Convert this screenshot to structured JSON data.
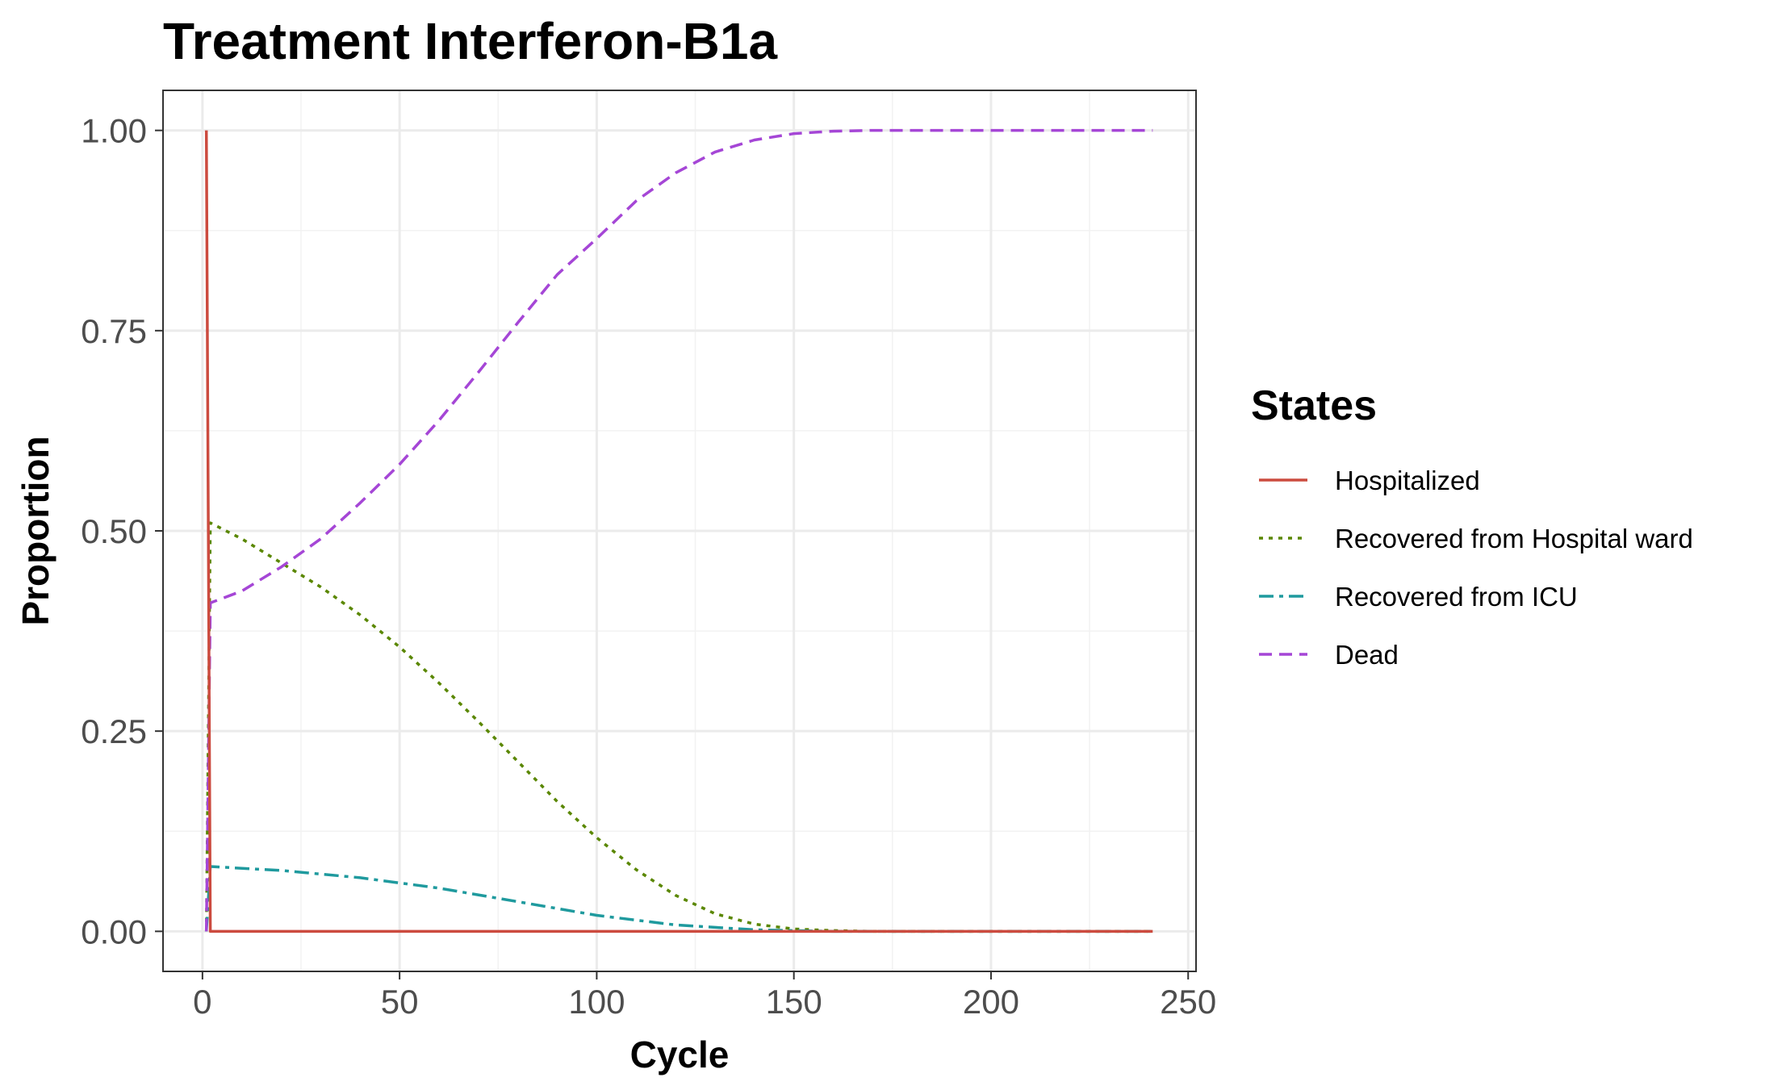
{
  "chart_data": {
    "type": "line",
    "title": "Treatment Interferon-B1a",
    "xlabel": "Cycle",
    "ylabel": "Proportion",
    "xlim": [
      -10,
      252
    ],
    "ylim": [
      -0.05,
      1.05
    ],
    "x_ticks": [
      0,
      50,
      100,
      150,
      200,
      250
    ],
    "x_tick_labels": [
      "0",
      "50",
      "100",
      "150",
      "200",
      "250"
    ],
    "y_ticks": [
      0,
      0.25,
      0.5,
      0.75,
      1.0
    ],
    "y_tick_labels": [
      "0.00",
      "0.25",
      "0.50",
      "0.75",
      "1.00"
    ],
    "grid": true,
    "legend": {
      "title": "States",
      "position": "right"
    },
    "series": [
      {
        "name": "Hospitalized",
        "color": "#cc4b3f",
        "dash": "solid",
        "x": [
          1,
          2,
          241
        ],
        "y": [
          1.0,
          0.0,
          0.0
        ]
      },
      {
        "name": "Recovered from Hospital ward",
        "color": "#5a8700",
        "dash": "dotted",
        "x": [
          1,
          2,
          10,
          20,
          30,
          40,
          50,
          60,
          70,
          80,
          90,
          100,
          110,
          120,
          130,
          140,
          150,
          160,
          170,
          180,
          200,
          220,
          241
        ],
        "y": [
          0.0,
          0.51,
          0.49,
          0.46,
          0.43,
          0.395,
          0.355,
          0.31,
          0.262,
          0.212,
          0.162,
          0.117,
          0.077,
          0.045,
          0.022,
          0.009,
          0.003,
          0.001,
          0.0,
          0.0,
          0.0,
          0.0,
          0.0
        ]
      },
      {
        "name": "Recovered from ICU",
        "color": "#1f9a9e",
        "dash": "dashdot",
        "x": [
          1,
          2,
          20,
          40,
          60,
          80,
          100,
          120,
          140,
          160,
          180,
          200,
          220,
          241
        ],
        "y": [
          0.0,
          0.081,
          0.076,
          0.067,
          0.054,
          0.037,
          0.02,
          0.008,
          0.002,
          0.0,
          0.0,
          0.0,
          0.0,
          0.0
        ]
      },
      {
        "name": "Dead",
        "color": "#a546d6",
        "dash": "dashed",
        "x": [
          1,
          2,
          10,
          20,
          30,
          40,
          50,
          60,
          70,
          80,
          90,
          100,
          110,
          120,
          130,
          140,
          150,
          160,
          170,
          180,
          200,
          220,
          241
        ],
        "y": [
          0.0,
          0.41,
          0.425,
          0.455,
          0.49,
          0.535,
          0.583,
          0.638,
          0.698,
          0.76,
          0.82,
          0.865,
          0.912,
          0.947,
          0.973,
          0.988,
          0.996,
          0.999,
          1.0,
          1.0,
          1.0,
          1.0,
          1.0
        ]
      }
    ]
  }
}
